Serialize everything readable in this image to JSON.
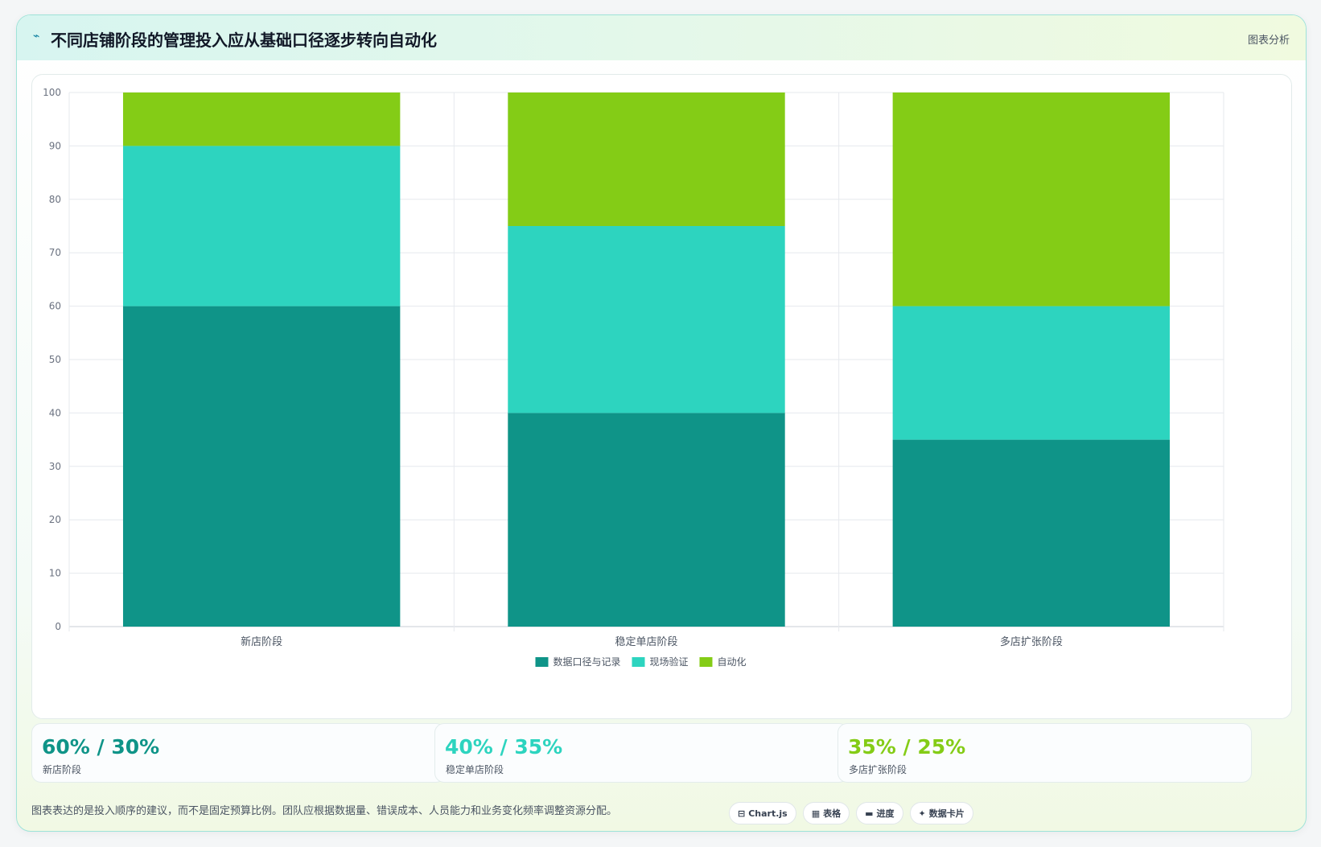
{
  "header": {
    "title": "不同店铺阶段的管理投入应从基础口径逐步转向自动化",
    "tag": "图表分析",
    "title_icon": "lightning-icon"
  },
  "chart_data": {
    "type": "bar",
    "stacked": true,
    "categories": [
      "新店阶段",
      "稳定单店阶段",
      "多店扩张阶段"
    ],
    "series": [
      {
        "name": "数据口径与记录",
        "color": "#0f9488",
        "values": [
          60,
          40,
          35
        ]
      },
      {
        "name": "现场验证",
        "color": "#2dd4bf",
        "values": [
          30,
          35,
          25
        ]
      },
      {
        "name": "自动化",
        "color": "#84cc16",
        "values": [
          10,
          25,
          40
        ]
      }
    ],
    "ylim": [
      0,
      100
    ],
    "yticks": [
      0,
      10,
      20,
      30,
      40,
      50,
      60,
      70,
      80,
      90,
      100
    ],
    "grid": true,
    "legend": "bottom-center",
    "title": "",
    "xlabel": "",
    "ylabel": ""
  },
  "stats": [
    {
      "value": "60% / 30%",
      "label": "新店阶段",
      "color": "#0f9488"
    },
    {
      "value": "40% / 35%",
      "label": "稳定单店阶段",
      "color": "#2dd4bf"
    },
    {
      "value": "35% / 25%",
      "label": "多店扩张阶段",
      "color": "#84cc16"
    }
  ],
  "footer": {
    "note": "图表表达的是投入顺序的建议，而不是固定预算比例。团队应根据数据量、错误成本、人员能力和业务变化频率调整资源分配。",
    "pills": [
      {
        "icon": "chart-icon",
        "glyph": "⊟",
        "label": "Chart.js"
      },
      {
        "icon": "table-icon",
        "glyph": "▦",
        "label": "表格"
      },
      {
        "icon": "progress-icon",
        "glyph": "▬",
        "label": "进度"
      },
      {
        "icon": "sparkle-icon",
        "glyph": "✦",
        "label": "数据卡片"
      }
    ]
  }
}
